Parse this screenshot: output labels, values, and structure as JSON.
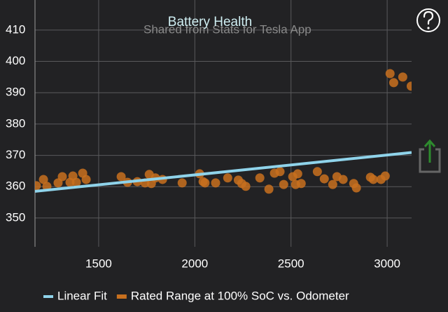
{
  "chart_data": {
    "type": "scatter",
    "title": "Battery Health",
    "subtitle": "Shared from Stats for Tesla App",
    "xlim": [
      1169,
      3127
    ],
    "ylim": [
      340.8,
      419.6
    ],
    "xticks": [
      1500,
      2000,
      2500,
      3000
    ],
    "yticks": [
      350,
      360,
      370,
      380,
      390,
      400,
      410
    ],
    "grid": true,
    "legend": "bottom",
    "series": [
      {
        "name": "Linear Fit",
        "type": "line",
        "color": "#8fd3ea",
        "x": [
          1169,
          3127
        ],
        "values": [
          358.5,
          370.9
        ]
      },
      {
        "name": "Rated Range at 100% SoC vs. Odometer",
        "type": "scatter",
        "color": "#c8701e",
        "x": [
          1176,
          1213,
          1231,
          1289,
          1311,
          1351,
          1366,
          1384,
          1417,
          1435,
          1617,
          1650,
          1701,
          1741,
          1763,
          1774,
          1795,
          1832,
          1934,
          2025,
          2043,
          2053,
          2108,
          2171,
          2226,
          2244,
          2265,
          2338,
          2385,
          2414,
          2443,
          2462,
          2509,
          2524,
          2535,
          2553,
          2637,
          2673,
          2717,
          2739,
          2771,
          2826,
          2840,
          2913,
          2928,
          2968,
          2990,
          3015,
          3034,
          3081,
          3125
        ],
        "values": [
          360.3,
          362.3,
          360.1,
          361.2,
          363.2,
          361.4,
          363.4,
          361.4,
          364.3,
          362.3,
          363.2,
          361.4,
          361.6,
          361.2,
          363.9,
          361.0,
          362.8,
          362.3,
          361.2,
          364.1,
          361.6,
          361.2,
          361.2,
          362.8,
          362.1,
          361.0,
          360.1,
          362.8,
          359.2,
          364.3,
          364.8,
          360.7,
          363.2,
          360.7,
          364.1,
          361.0,
          364.8,
          362.5,
          360.7,
          363.2,
          362.3,
          361.0,
          359.6,
          363.0,
          362.3,
          362.3,
          363.4,
          396.1,
          393.2,
          395.0,
          392.1
        ]
      }
    ]
  }
}
